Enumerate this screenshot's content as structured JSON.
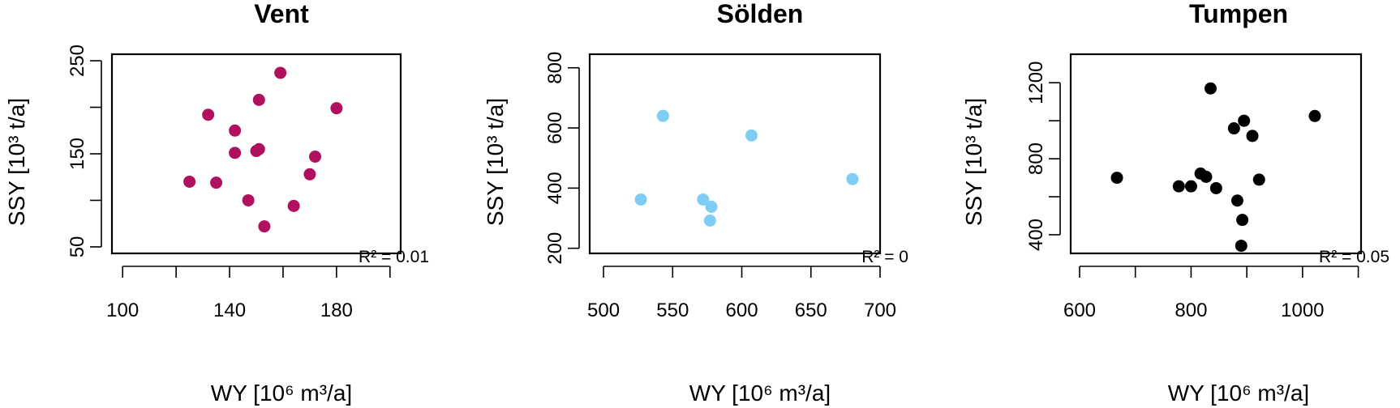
{
  "chart_data": [
    {
      "type": "scatter",
      "title": "Vent",
      "xlabel": "WY [10⁶ m³/a]",
      "ylabel": "SSY [10³ t/a]",
      "xlim": [
        96,
        204
      ],
      "ylim": [
        43,
        257
      ],
      "xticks": [
        100,
        120,
        140,
        160,
        180,
        200
      ],
      "xtick_labels": [
        "100",
        "",
        "140",
        "",
        "180",
        ""
      ],
      "yticks": [
        50,
        100,
        150,
        200,
        250
      ],
      "ytick_labels": [
        "50",
        "",
        "150",
        "",
        "250"
      ],
      "color": "#b0105e",
      "annotation": "R² = 0.01",
      "points": [
        {
          "x": 125,
          "y": 120
        },
        {
          "x": 132,
          "y": 192
        },
        {
          "x": 135,
          "y": 119
        },
        {
          "x": 142,
          "y": 175
        },
        {
          "x": 142,
          "y": 151
        },
        {
          "x": 147,
          "y": 100
        },
        {
          "x": 150,
          "y": 153
        },
        {
          "x": 151,
          "y": 155
        },
        {
          "x": 151,
          "y": 208
        },
        {
          "x": 153,
          "y": 72
        },
        {
          "x": 159,
          "y": 237
        },
        {
          "x": 164,
          "y": 94
        },
        {
          "x": 170,
          "y": 128
        },
        {
          "x": 172,
          "y": 147
        },
        {
          "x": 180,
          "y": 199
        }
      ]
    },
    {
      "type": "scatter",
      "title": "Sölden",
      "xlabel": "WY [10⁶ m³/a]",
      "ylabel": "SSY [10³ t/a]",
      "xlim": [
        490,
        700
      ],
      "ylim": [
        183,
        845
      ],
      "xticks": [
        500,
        550,
        600,
        650,
        700
      ],
      "xtick_labels": [
        "500",
        "550",
        "600",
        "650",
        "700"
      ],
      "yticks": [
        200,
        400,
        600,
        800
      ],
      "ytick_labels": [
        "200",
        "400",
        "600",
        "800"
      ],
      "color": "#7fcdf5",
      "annotation": "R² = 0",
      "points": [
        {
          "x": 527,
          "y": 362
        },
        {
          "x": 543,
          "y": 640
        },
        {
          "x": 572,
          "y": 362
        },
        {
          "x": 577,
          "y": 292
        },
        {
          "x": 578,
          "y": 338
        },
        {
          "x": 607,
          "y": 575
        },
        {
          "x": 680,
          "y": 430
        }
      ]
    },
    {
      "type": "scatter",
      "title": "Tumpen",
      "xlabel": "WY [10⁶ m³/a]",
      "ylabel": "SSY [10³ t/a]",
      "xlim": [
        584,
        1105
      ],
      "ylim": [
        302,
        1350
      ],
      "xticks": [
        600,
        700,
        800,
        900,
        1000,
        1100
      ],
      "xtick_labels": [
        "600",
        "",
        "800",
        "",
        "1000",
        ""
      ],
      "yticks": [
        400,
        800,
        1200
      ],
      "ytick_labels": [
        "400",
        "800",
        "1200"
      ],
      "extra_yticks": [
        600,
        1000
      ],
      "color": "#000000",
      "annotation": "R² = 0.05",
      "points": [
        {
          "x": 667,
          "y": 700
        },
        {
          "x": 778,
          "y": 655
        },
        {
          "x": 800,
          "y": 655
        },
        {
          "x": 817,
          "y": 722
        },
        {
          "x": 827,
          "y": 705
        },
        {
          "x": 835,
          "y": 1170
        },
        {
          "x": 845,
          "y": 645
        },
        {
          "x": 877,
          "y": 960
        },
        {
          "x": 883,
          "y": 580
        },
        {
          "x": 890,
          "y": 342
        },
        {
          "x": 892,
          "y": 478
        },
        {
          "x": 895,
          "y": 1000
        },
        {
          "x": 910,
          "y": 920
        },
        {
          "x": 922,
          "y": 690
        },
        {
          "x": 1022,
          "y": 1025
        }
      ]
    }
  ]
}
